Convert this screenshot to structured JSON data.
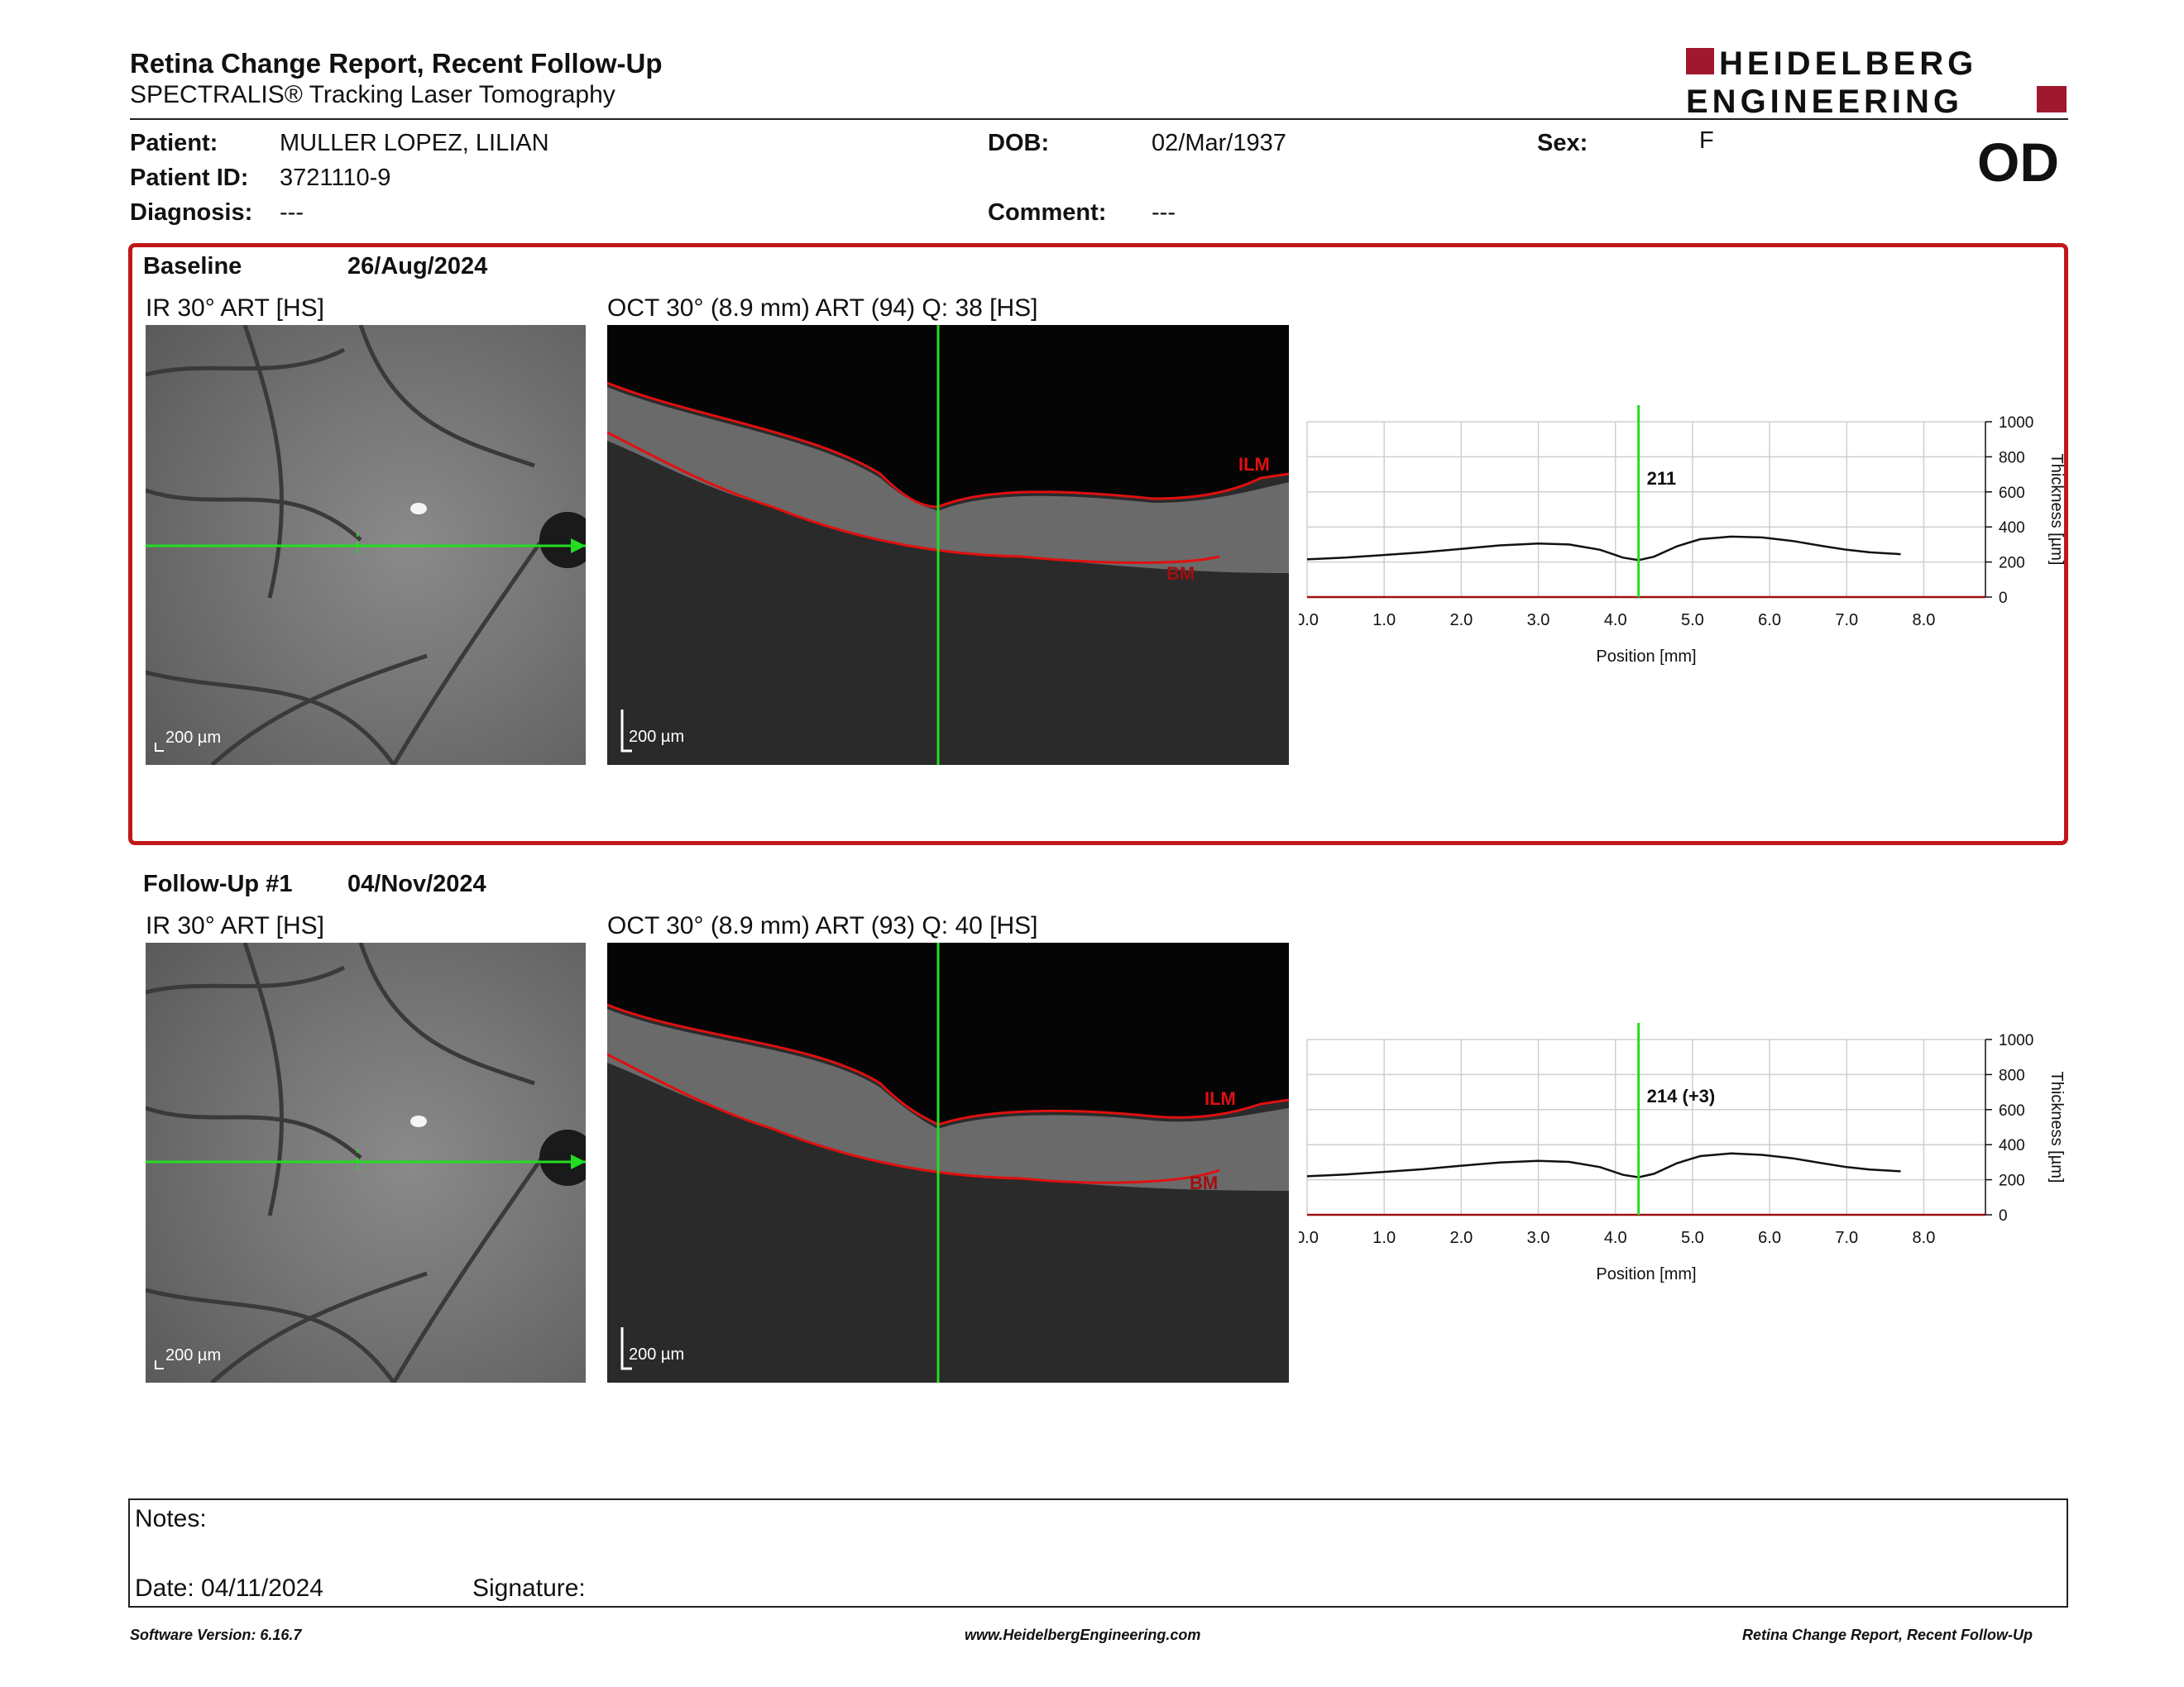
{
  "header": {
    "title": "Retina Change Report, Recent Follow-Up",
    "subtitle": "SPECTRALIS® Tracking Laser Tomography",
    "brand_line1": "HEIDELBERG",
    "brand_line2": "ENGINEERING",
    "eye": "OD"
  },
  "patient": {
    "patient_label": "Patient:",
    "patient_value": "MULLER LOPEZ, LILIAN",
    "id_label": "Patient ID:",
    "id_value": "3721110-9",
    "diagnosis_label": "Diagnosis:",
    "diagnosis_value": "---",
    "dob_label": "DOB:",
    "dob_value": "02/Mar/1937",
    "comment_label": "Comment:",
    "comment_value": "---",
    "sex_label": "Sex:",
    "sex_value": "F"
  },
  "baseline": {
    "label": "Baseline",
    "date": "26/Aug/2024",
    "ir_title": "IR 30° ART [HS]",
    "oct_title": "OCT 30° (8.9 mm) ART (94) Q: 38 [HS]",
    "ir_scale": "200 µm",
    "oct_scale": "200 µm",
    "ilm": "ILM",
    "bm": "BM",
    "readout": "211"
  },
  "followup": {
    "label": "Follow-Up #1",
    "date": "04/Nov/2024",
    "ir_title": "IR 30° ART [HS]",
    "oct_title": "OCT 30° (8.9 mm) ART (93) Q: 40 [HS]",
    "ir_scale": "200 µm",
    "oct_scale": "200 µm",
    "ilm": "ILM",
    "bm": "BM",
    "readout": "214 (+3)"
  },
  "chart_data": [
    {
      "type": "line",
      "xlabel": "Position [mm]",
      "ylabel": "Thickness [µm]",
      "xlim": [
        0.0,
        8.8
      ],
      "ylim": [
        0,
        1000
      ],
      "x_ticks": [
        "0.0",
        "1.0",
        "2.0",
        "3.0",
        "4.0",
        "5.0",
        "6.0",
        "7.0",
        "8.0"
      ],
      "y_ticks": [
        "0",
        "200",
        "400",
        "600",
        "800",
        "1000"
      ],
      "grid": true,
      "marker_x": 4.3,
      "marker_label": "211",
      "series": [
        {
          "x": [
            0.0,
            0.5,
            1.0,
            1.5,
            2.0,
            2.5,
            3.0,
            3.4,
            3.8,
            4.1,
            4.3,
            4.5,
            4.8,
            5.1,
            5.5,
            5.9,
            6.3,
            6.7,
            7.0,
            7.3,
            7.7
          ],
          "values": [
            215,
            225,
            240,
            255,
            275,
            295,
            305,
            300,
            270,
            225,
            211,
            230,
            290,
            330,
            345,
            340,
            320,
            290,
            270,
            255,
            245
          ]
        }
      ]
    },
    {
      "type": "line",
      "xlabel": "Position [mm]",
      "ylabel": "Thickness [µm]",
      "xlim": [
        0.0,
        8.8
      ],
      "ylim": [
        0,
        1000
      ],
      "x_ticks": [
        "0.0",
        "1.0",
        "2.0",
        "3.0",
        "4.0",
        "5.0",
        "6.0",
        "7.0",
        "8.0"
      ],
      "y_ticks": [
        "0",
        "200",
        "400",
        "600",
        "800",
        "1000"
      ],
      "grid": true,
      "marker_x": 4.3,
      "marker_label": "214 (+3)",
      "series": [
        {
          "x": [
            0.0,
            0.5,
            1.0,
            1.5,
            2.0,
            2.5,
            3.0,
            3.4,
            3.8,
            4.1,
            4.3,
            4.5,
            4.8,
            5.1,
            5.5,
            5.9,
            6.3,
            6.7,
            7.0,
            7.3,
            7.7
          ],
          "values": [
            220,
            230,
            245,
            260,
            280,
            298,
            308,
            302,
            272,
            228,
            214,
            234,
            295,
            335,
            350,
            342,
            322,
            293,
            272,
            258,
            248
          ]
        }
      ]
    }
  ],
  "notes": {
    "notes_label": "Notes:",
    "date_label": "Date: 04/11/2024",
    "signature_label": "Signature:"
  },
  "footer": {
    "version": "Software Version: 6.16.7",
    "website": "www.HeidelbergEngineering.com",
    "report_name": "Retina Change Report, Recent Follow-Up"
  },
  "colors": {
    "frame_red": "#c01818",
    "brand_red": "#a0182e",
    "scan_green": "#22dd22",
    "segment_red": "#e01010"
  }
}
